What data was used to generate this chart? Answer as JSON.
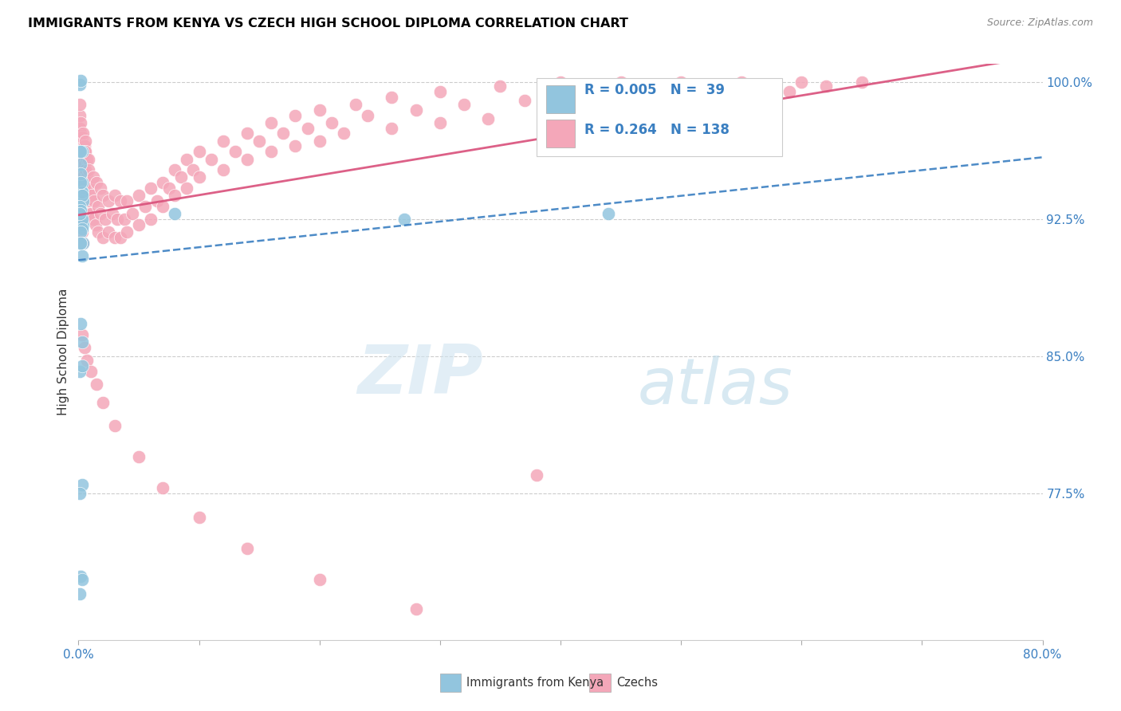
{
  "title": "IMMIGRANTS FROM KENYA VS CZECH HIGH SCHOOL DIPLOMA CORRELATION CHART",
  "source": "Source: ZipAtlas.com",
  "ylabel": "High School Diploma",
  "right_yticks": [
    "100.0%",
    "92.5%",
    "85.0%",
    "77.5%"
  ],
  "right_ytick_vals": [
    1.0,
    0.925,
    0.85,
    0.775
  ],
  "watermark_zip": "ZIP",
  "watermark_atlas": "atlas",
  "legend_blue_r": "R = 0.005",
  "legend_blue_n": "N =  39",
  "legend_pink_r": "R = 0.264",
  "legend_pink_n": "N = 138",
  "legend_label_blue": "Immigrants from Kenya",
  "legend_label_pink": "Czechs",
  "blue_color": "#92c5de",
  "pink_color": "#f4a7b9",
  "trendline_blue_color": "#3a7fc1",
  "trendline_pink_color": "#d94f7a",
  "xlim": [
    0.0,
    0.8
  ],
  "ylim": [
    0.695,
    1.01
  ],
  "blue_scatter_x": [
    0.001,
    0.002,
    0.003,
    0.002,
    0.001,
    0.003,
    0.002,
    0.004,
    0.003,
    0.001,
    0.002,
    0.003,
    0.001,
    0.002,
    0.004,
    0.003,
    0.002,
    0.001,
    0.003,
    0.002,
    0.004,
    0.003,
    0.001,
    0.002,
    0.003,
    0.27,
    0.003,
    0.002,
    0.001,
    0.003,
    0.44,
    0.08,
    0.003,
    0.002,
    0.001,
    0.003,
    0.002,
    0.001,
    0.002
  ],
  "blue_scatter_y": [
    0.999,
    1.001,
    0.94,
    0.955,
    0.935,
    0.945,
    0.95,
    0.935,
    0.94,
    0.928,
    0.945,
    0.938,
    0.932,
    0.928,
    0.922,
    0.925,
    0.93,
    0.928,
    0.92,
    0.918,
    0.912,
    0.905,
    0.842,
    0.868,
    0.858,
    0.925,
    0.962,
    0.73,
    0.962,
    0.78,
    0.928,
    0.928,
    0.728,
    0.962,
    0.775,
    0.845,
    0.912,
    0.72,
    0.912
  ],
  "pink_scatter_x": [
    0.001,
    0.002,
    0.001,
    0.003,
    0.002,
    0.001,
    0.003,
    0.002,
    0.004,
    0.003,
    0.002,
    0.004,
    0.003,
    0.005,
    0.004,
    0.003,
    0.005,
    0.004,
    0.006,
    0.005,
    0.004,
    0.006,
    0.005,
    0.007,
    0.006,
    0.005,
    0.008,
    0.007,
    0.006,
    0.008,
    0.01,
    0.009,
    0.008,
    0.012,
    0.011,
    0.01,
    0.015,
    0.013,
    0.012,
    0.018,
    0.016,
    0.014,
    0.02,
    0.018,
    0.016,
    0.025,
    0.022,
    0.02,
    0.03,
    0.028,
    0.025,
    0.035,
    0.032,
    0.03,
    0.04,
    0.038,
    0.035,
    0.05,
    0.045,
    0.04,
    0.06,
    0.055,
    0.05,
    0.07,
    0.065,
    0.06,
    0.08,
    0.075,
    0.07,
    0.09,
    0.085,
    0.08,
    0.1,
    0.095,
    0.09,
    0.12,
    0.11,
    0.1,
    0.14,
    0.13,
    0.12,
    0.16,
    0.15,
    0.14,
    0.18,
    0.17,
    0.16,
    0.2,
    0.19,
    0.18,
    0.23,
    0.21,
    0.2,
    0.26,
    0.24,
    0.22,
    0.3,
    0.28,
    0.26,
    0.35,
    0.32,
    0.3,
    0.4,
    0.37,
    0.34,
    0.45,
    0.42,
    0.39,
    0.5,
    0.47,
    0.44,
    0.55,
    0.52,
    0.49,
    0.6,
    0.57,
    0.54,
    0.65,
    0.62,
    0.59,
    0.003,
    0.005,
    0.007,
    0.01,
    0.015,
    0.02,
    0.03,
    0.05,
    0.07,
    0.1,
    0.14,
    0.2,
    0.28,
    0.38,
    0.001,
    0.002,
    0.003,
    0.004
  ],
  "pink_scatter_y": [
    0.975,
    0.968,
    0.982,
    0.96,
    0.972,
    0.988,
    0.965,
    0.978,
    0.958,
    0.97,
    0.962,
    0.972,
    0.955,
    0.965,
    0.958,
    0.948,
    0.962,
    0.952,
    0.968,
    0.955,
    0.948,
    0.962,
    0.945,
    0.958,
    0.952,
    0.942,
    0.958,
    0.948,
    0.938,
    0.952,
    0.942,
    0.935,
    0.928,
    0.948,
    0.938,
    0.928,
    0.945,
    0.935,
    0.925,
    0.942,
    0.932,
    0.922,
    0.938,
    0.928,
    0.918,
    0.935,
    0.925,
    0.915,
    0.938,
    0.928,
    0.918,
    0.935,
    0.925,
    0.915,
    0.935,
    0.925,
    0.915,
    0.938,
    0.928,
    0.918,
    0.942,
    0.932,
    0.922,
    0.945,
    0.935,
    0.925,
    0.952,
    0.942,
    0.932,
    0.958,
    0.948,
    0.938,
    0.962,
    0.952,
    0.942,
    0.968,
    0.958,
    0.948,
    0.972,
    0.962,
    0.952,
    0.978,
    0.968,
    0.958,
    0.982,
    0.972,
    0.962,
    0.985,
    0.975,
    0.965,
    0.988,
    0.978,
    0.968,
    0.992,
    0.982,
    0.972,
    0.995,
    0.985,
    0.975,
    0.998,
    0.988,
    0.978,
    1.0,
    0.99,
    0.98,
    1.0,
    0.992,
    0.982,
    1.0,
    0.995,
    0.985,
    1.0,
    0.995,
    0.988,
    1.0,
    0.998,
    0.992,
    1.0,
    0.998,
    0.995,
    0.862,
    0.855,
    0.848,
    0.842,
    0.835,
    0.825,
    0.812,
    0.795,
    0.778,
    0.762,
    0.745,
    0.728,
    0.712,
    0.785,
    0.928,
    0.922,
    0.918,
    0.912
  ]
}
